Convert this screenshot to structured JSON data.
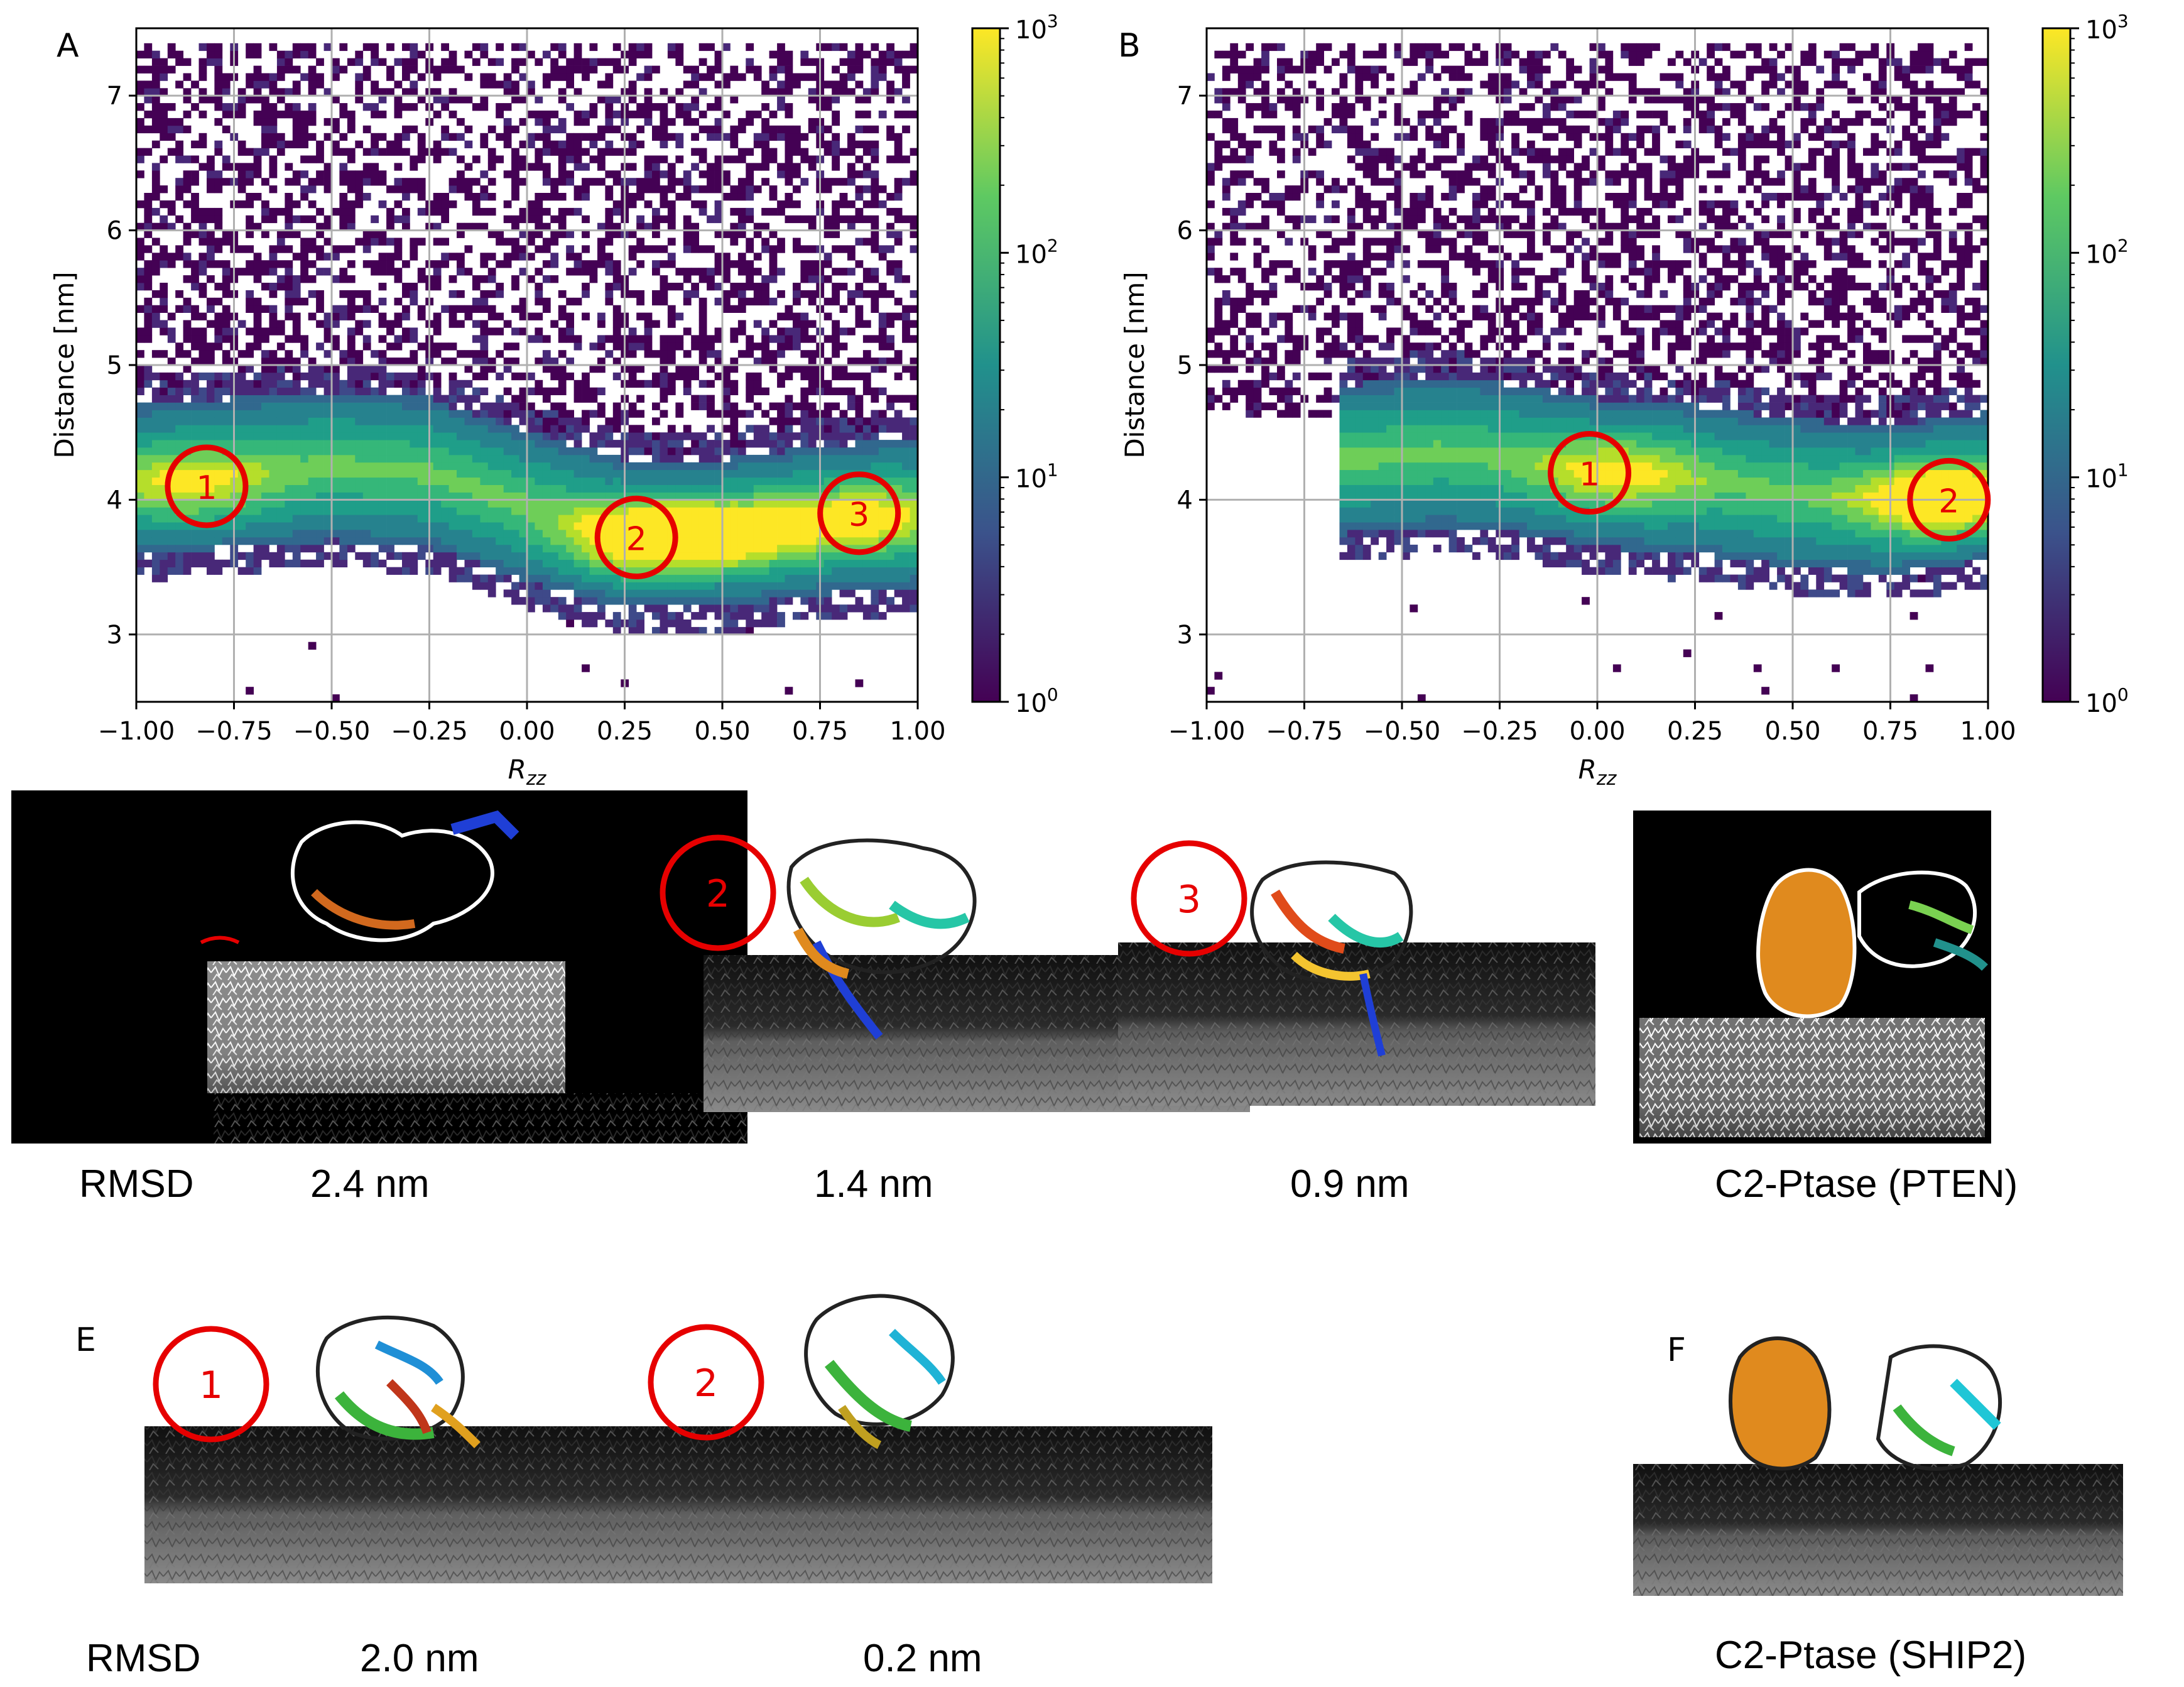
{
  "panels": {
    "A": "A",
    "B": "B",
    "E": "E",
    "F": "F"
  },
  "chart_data": [
    {
      "type": "heatmap",
      "panel": "A",
      "xlabel_base": "R",
      "xlabel_sub": "zz",
      "ylabel": "Distance [nm]",
      "xlim": [
        -1.0,
        1.0
      ],
      "ylim": [
        2.5,
        7.5
      ],
      "xticks": [
        -1.0,
        -0.75,
        -0.5,
        -0.25,
        0.0,
        0.25,
        0.5,
        0.75,
        1.0
      ],
      "xtick_labels": [
        "−1.00",
        "−0.75",
        "−0.50",
        "−0.25",
        "0.00",
        "0.25",
        "0.50",
        "0.75",
        "1.00"
      ],
      "yticks": [
        3,
        4,
        5,
        6,
        7
      ],
      "ytick_labels": [
        "3",
        "4",
        "5",
        "6",
        "7"
      ],
      "grid": true,
      "colorbar": {
        "scale": "log",
        "range": [
          1,
          1000
        ],
        "tick_base": "10",
        "tick_exponents": [
          "0",
          "1",
          "2",
          "3"
        ],
        "colormap": [
          "#440154",
          "#3b528b",
          "#21918c",
          "#5ec962",
          "#fde725"
        ]
      },
      "band_center": [
        {
          "x": -1.0,
          "y": 4.15
        },
        {
          "x": -0.75,
          "y": 4.2
        },
        {
          "x": -0.5,
          "y": 4.25
        },
        {
          "x": -0.25,
          "y": 4.2
        },
        {
          "x": 0.0,
          "y": 3.95
        },
        {
          "x": 0.25,
          "y": 3.75
        },
        {
          "x": 0.5,
          "y": 3.75
        },
        {
          "x": 0.75,
          "y": 3.85
        },
        {
          "x": 1.0,
          "y": 3.9
        }
      ],
      "hotspots": [
        {
          "x": 0.3,
          "y": 3.72,
          "intensity": 1.0
        },
        {
          "x": 0.55,
          "y": 3.75,
          "intensity": 0.75
        },
        {
          "x": 0.85,
          "y": 3.85,
          "intensity": 0.6
        },
        {
          "x": -0.85,
          "y": 4.1,
          "intensity": 0.5
        }
      ],
      "annotations": [
        {
          "label": "1",
          "x": -0.82,
          "y": 4.1
        },
        {
          "label": "2",
          "x": 0.28,
          "y": 3.72
        },
        {
          "label": "3",
          "x": 0.85,
          "y": 3.9
        }
      ]
    },
    {
      "type": "heatmap",
      "panel": "B",
      "xlabel_base": "R",
      "xlabel_sub": "zz",
      "ylabel": "Distance [nm]",
      "xlim": [
        -1.0,
        1.0
      ],
      "ylim": [
        2.5,
        7.5
      ],
      "xticks": [
        -1.0,
        -0.75,
        -0.5,
        -0.25,
        0.0,
        0.25,
        0.5,
        0.75,
        1.0
      ],
      "xtick_labels": [
        "−1.00",
        "−0.75",
        "−0.50",
        "−0.25",
        "0.00",
        "0.25",
        "0.50",
        "0.75",
        "1.00"
      ],
      "yticks": [
        3,
        4,
        5,
        6,
        7
      ],
      "ytick_labels": [
        "3",
        "4",
        "5",
        "6",
        "7"
      ],
      "grid": true,
      "colorbar": {
        "scale": "log",
        "range": [
          1,
          1000
        ],
        "tick_base": "10",
        "tick_exponents": [
          "0",
          "1",
          "2",
          "3"
        ],
        "colormap": [
          "#440154",
          "#3b528b",
          "#21918c",
          "#5ec962",
          "#fde725"
        ]
      },
      "band_center": [
        {
          "x": -0.65,
          "y": 4.3
        },
        {
          "x": -0.4,
          "y": 4.35
        },
        {
          "x": -0.2,
          "y": 4.3
        },
        {
          "x": 0.0,
          "y": 4.2
        },
        {
          "x": 0.25,
          "y": 4.15
        },
        {
          "x": 0.5,
          "y": 4.05
        },
        {
          "x": 0.75,
          "y": 4.0
        },
        {
          "x": 1.0,
          "y": 4.1
        }
      ],
      "hotspots": [
        {
          "x": 0.05,
          "y": 4.2,
          "intensity": 0.55
        },
        {
          "x": 0.88,
          "y": 4.0,
          "intensity": 1.0
        }
      ],
      "annotations": [
        {
          "label": "1",
          "x": -0.02,
          "y": 4.2
        },
        {
          "label": "2",
          "x": 0.9,
          "y": 4.0
        }
      ]
    }
  ],
  "row_C": {
    "snapshot_labels": [
      "2",
      "3"
    ],
    "captions": {
      "rmsd": "RMSD",
      "v1": "2.4 nm",
      "v2": "1.4 nm",
      "v3": "0.9 nm",
      "reference": "C2-Ptase (PTEN)"
    }
  },
  "row_E": {
    "snapshot_labels": [
      "1",
      "2"
    ],
    "captions": {
      "rmsd": "RMSD",
      "v1": "2.0 nm",
      "v2": "0.2 nm",
      "reference": "C2-Ptase (SHIP2)"
    }
  },
  "colors": {
    "annotation_red": "#e60000",
    "grid": "#b0b0b0",
    "membrane_dark": "#1a1a1a",
    "membrane_gray": "#6b6b6b",
    "lipid_red": "#8b1010"
  }
}
